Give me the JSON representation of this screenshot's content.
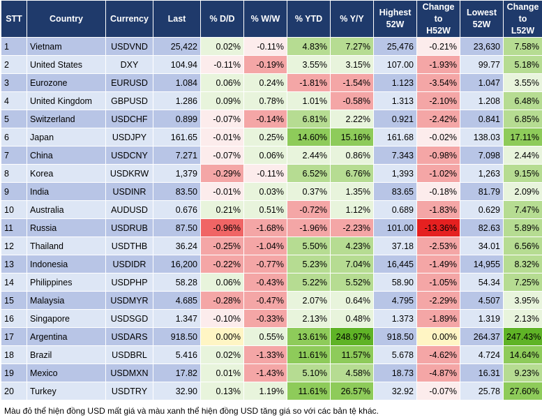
{
  "headers": [
    "STT",
    "Country",
    "Currency",
    "Last",
    "% D/D",
    "% W/W",
    "% YTD",
    "% Y/Y",
    "Highest\n52W",
    "Change\nto\nH52W",
    "Lowest\n52W",
    "Change\nto\nL52W"
  ],
  "rows": [
    {
      "stt": "1",
      "country": "Vietnam",
      "currency": "USDVND",
      "last": "25,422",
      "dd": "0.02%",
      "ww": "-0.11%",
      "ytd": "4.83%",
      "yy": "7.27%",
      "high": "25,476",
      "chh": "-0.21%",
      "low": "23,630",
      "chl": "7.58%"
    },
    {
      "stt": "2",
      "country": "United States",
      "currency": "DXY",
      "last": "104.94",
      "dd": "-0.11%",
      "ww": "-0.19%",
      "ytd": "3.55%",
      "yy": "3.15%",
      "high": "107.00",
      "chh": "-1.93%",
      "low": "99.77",
      "chl": "5.18%"
    },
    {
      "stt": "3",
      "country": "Eurozone",
      "currency": "EURUSD",
      "last": "1.084",
      "dd": "0.06%",
      "ww": "0.24%",
      "ytd": "-1.81%",
      "yy": "-1.54%",
      "high": "1.123",
      "chh": "-3.54%",
      "low": "1.047",
      "chl": "3.55%"
    },
    {
      "stt": "4",
      "country": "United Kingdom",
      "currency": "GBPUSD",
      "last": "1.286",
      "dd": "0.09%",
      "ww": "0.78%",
      "ytd": "1.01%",
      "yy": "-0.58%",
      "high": "1.313",
      "chh": "-2.10%",
      "low": "1.208",
      "chl": "6.48%"
    },
    {
      "stt": "5",
      "country": "Switzerland",
      "currency": "USDCHF",
      "last": "0.899",
      "dd": "-0.07%",
      "ww": "-0.14%",
      "ytd": "6.81%",
      "yy": "2.22%",
      "high": "0.921",
      "chh": "-2.42%",
      "low": "0.841",
      "chl": "6.85%"
    },
    {
      "stt": "6",
      "country": "Japan",
      "currency": "USDJPY",
      "last": "161.65",
      "dd": "-0.01%",
      "ww": "0.25%",
      "ytd": "14.60%",
      "yy": "15.16%",
      "high": "161.68",
      "chh": "-0.02%",
      "low": "138.03",
      "chl": "17.11%"
    },
    {
      "stt": "7",
      "country": "China",
      "currency": "USDCNY",
      "last": "7.271",
      "dd": "-0.07%",
      "ww": "0.06%",
      "ytd": "2.44%",
      "yy": "0.86%",
      "high": "7.343",
      "chh": "-0.98%",
      "low": "7.098",
      "chl": "2.44%"
    },
    {
      "stt": "8",
      "country": "Korea",
      "currency": "USDKRW",
      "last": "1,379",
      "dd": "-0.29%",
      "ww": "-0.11%",
      "ytd": "6.52%",
      "yy": "6.76%",
      "high": "1,393",
      "chh": "-1.02%",
      "low": "1,263",
      "chl": "9.15%"
    },
    {
      "stt": "9",
      "country": "India",
      "currency": "USDINR",
      "last": "83.50",
      "dd": "-0.01%",
      "ww": "0.03%",
      "ytd": "0.37%",
      "yy": "1.35%",
      "high": "83.65",
      "chh": "-0.18%",
      "low": "81.79",
      "chl": "2.09%"
    },
    {
      "stt": "10",
      "country": "Australia",
      "currency": "AUDUSD",
      "last": "0.676",
      "dd": "0.21%",
      "ww": "0.51%",
      "ytd": "-0.72%",
      "yy": "1.12%",
      "high": "0.689",
      "chh": "-1.83%",
      "low": "0.629",
      "chl": "7.47%"
    },
    {
      "stt": "11",
      "country": "Russia",
      "currency": "USDRUB",
      "last": "87.50",
      "dd": "-0.96%",
      "ww": "-1.68%",
      "ytd": "-1.96%",
      "yy": "-2.23%",
      "high": "101.00",
      "chh": "-13.36%",
      "low": "82.63",
      "chl": "5.89%"
    },
    {
      "stt": "12",
      "country": "Thailand",
      "currency": "USDTHB",
      "last": "36.24",
      "dd": "-0.25%",
      "ww": "-1.04%",
      "ytd": "5.50%",
      "yy": "4.23%",
      "high": "37.18",
      "chh": "-2.53%",
      "low": "34.01",
      "chl": "6.56%"
    },
    {
      "stt": "13",
      "country": "Indonesia",
      "currency": "USDIDR",
      "last": "16,200",
      "dd": "-0.22%",
      "ww": "-0.77%",
      "ytd": "5.23%",
      "yy": "7.04%",
      "high": "16,445",
      "chh": "-1.49%",
      "low": "14,955",
      "chl": "8.32%"
    },
    {
      "stt": "14",
      "country": "Philippines",
      "currency": "USDPHP",
      "last": "58.28",
      "dd": "0.06%",
      "ww": "-0.43%",
      "ytd": "5.22%",
      "yy": "5.52%",
      "high": "58.90",
      "chh": "-1.05%",
      "low": "54.34",
      "chl": "7.25%"
    },
    {
      "stt": "15",
      "country": "Malaysia",
      "currency": "USDMYR",
      "last": "4.685",
      "dd": "-0.28%",
      "ww": "-0.47%",
      "ytd": "2.07%",
      "yy": "0.64%",
      "high": "4.795",
      "chh": "-2.29%",
      "low": "4.507",
      "chl": "3.95%"
    },
    {
      "stt": "16",
      "country": "Singapore",
      "currency": "USDSGD",
      "last": "1.347",
      "dd": "-0.10%",
      "ww": "-0.33%",
      "ytd": "2.13%",
      "yy": "0.48%",
      "high": "1.373",
      "chh": "-1.89%",
      "low": "1.319",
      "chl": "2.13%"
    },
    {
      "stt": "17",
      "country": "Argentina",
      "currency": "USDARS",
      "last": "918.50",
      "dd": "0.00%",
      "ww": "0.55%",
      "ytd": "13.61%",
      "yy": "248.97%",
      "high": "918.50",
      "chh": "0.00%",
      "low": "264.37",
      "chl": "247.43%"
    },
    {
      "stt": "18",
      "country": "Brazil",
      "currency": "USDBRL",
      "last": "5.416",
      "dd": "0.02%",
      "ww": "-1.33%",
      "ytd": "11.61%",
      "yy": "11.57%",
      "high": "5.678",
      "chh": "-4.62%",
      "low": "4.724",
      "chl": "14.64%"
    },
    {
      "stt": "19",
      "country": "Mexico",
      "currency": "USDMXN",
      "last": "17.82",
      "dd": "0.01%",
      "ww": "-1.43%",
      "ytd": "5.10%",
      "yy": "4.58%",
      "high": "18.73",
      "chh": "-4.87%",
      "low": "16.31",
      "chl": "9.23%"
    },
    {
      "stt": "20",
      "country": "Turkey",
      "currency": "USDTRY",
      "last": "32.90",
      "dd": "0.13%",
      "ww": "1.19%",
      "ytd": "11.61%",
      "yy": "26.57%",
      "high": "32.92",
      "chh": "-0.07%",
      "low": "25.78",
      "chl": "27.60%"
    }
  ],
  "footnote": "Màu đỏ thể hiện đồng USD mất giá và màu xanh thể hiện đồng USD tăng giá so với các bản tệ khác.",
  "colors": {
    "header": "#1f3a6b",
    "row_odd": "#b8c5e6",
    "row_even": "#dde6f5",
    "pale_red": "#fcecec",
    "red": "#f4a6a6",
    "dark_red": "#f06565",
    "deep_red": "#e52020",
    "light_green": "#e8f4dc",
    "green": "#b6dc92",
    "dark_green": "#8ecb5a",
    "deep_green": "#5fb326",
    "neutral_yellow": "#fff5c4"
  }
}
